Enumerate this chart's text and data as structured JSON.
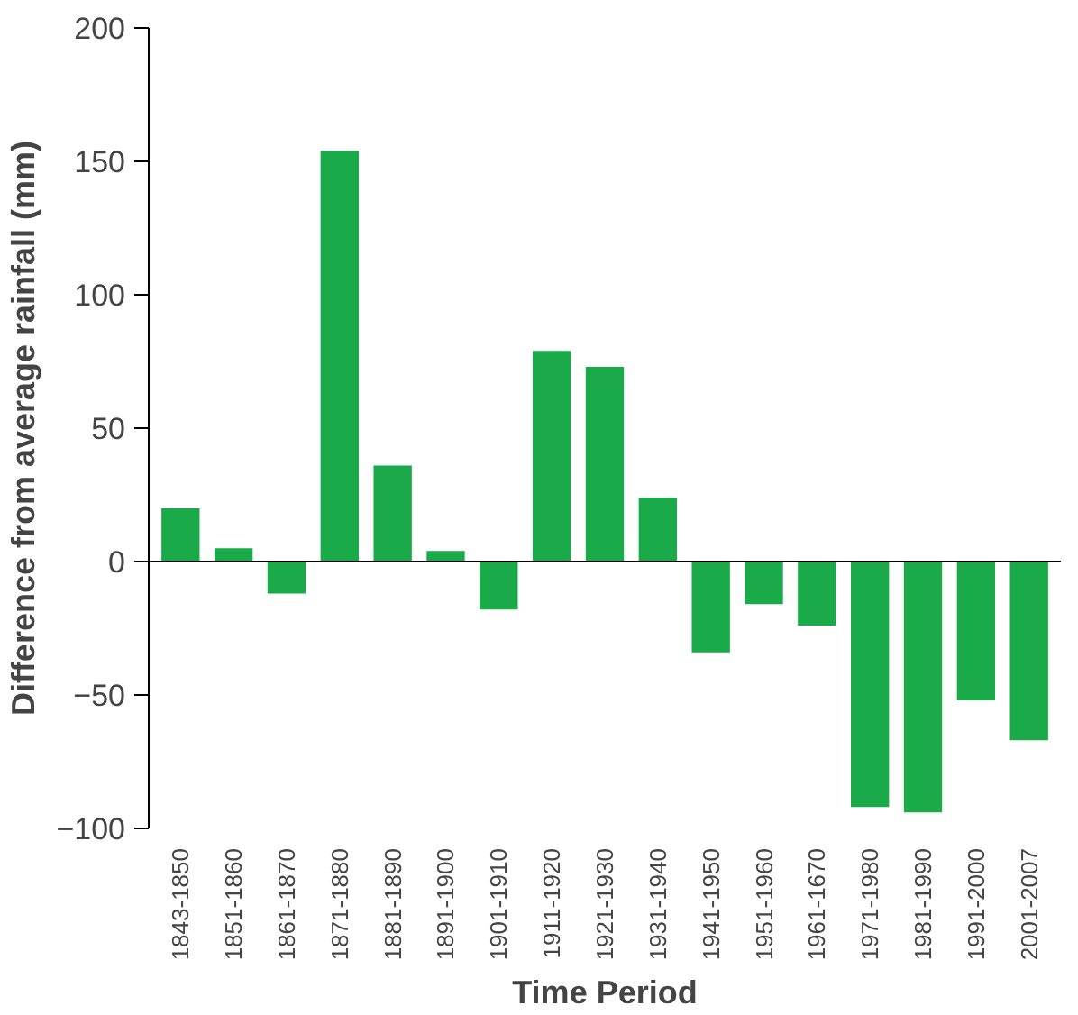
{
  "chart_data": {
    "type": "bar",
    "xlabel": "Time Period",
    "ylabel": "Difference from average rainfall (mm)",
    "categories": [
      "1843-1850",
      "1851-1860",
      "1861-1870",
      "1871-1880",
      "1881-1890",
      "1891-1900",
      "1901-1910",
      "1911-1920",
      "1921-1930",
      "1931-1940",
      "1941-1950",
      "1951-1960",
      "1961-1670",
      "1971-1980",
      "1981-1990",
      "1991-2000",
      "2001-2007"
    ],
    "values": [
      20,
      5,
      -12,
      154,
      36,
      4,
      -18,
      79,
      73,
      24,
      -34,
      -16,
      -24,
      -92,
      -94,
      -52,
      -67
    ],
    "color": "#1aaa4a",
    "ylim": [
      -100,
      200
    ],
    "yticks": [
      -100,
      -50,
      0,
      50,
      100,
      150,
      200
    ],
    "grid": false,
    "ref_lines": [
      {
        "axis": "y",
        "value": 0,
        "color": "#000000"
      }
    ]
  }
}
